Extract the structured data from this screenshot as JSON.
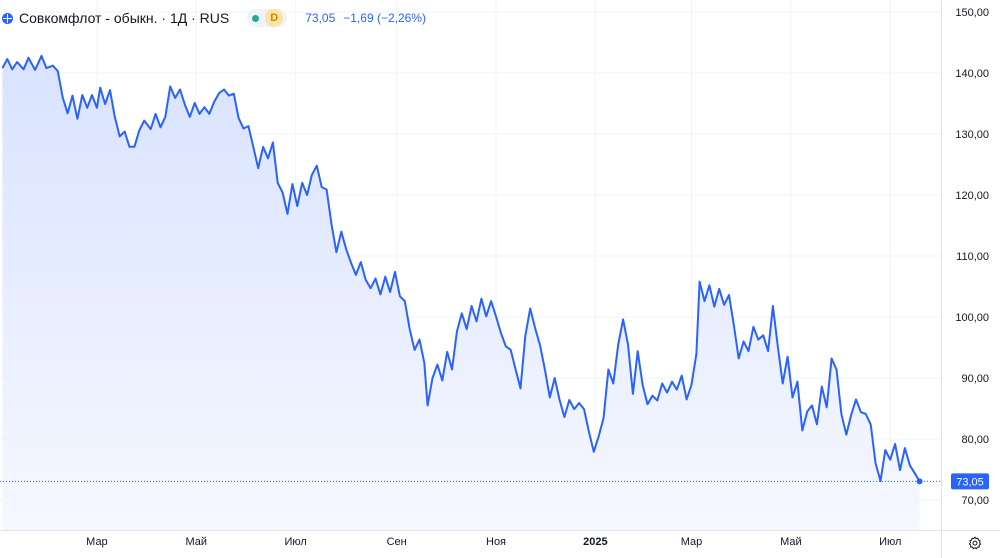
{
  "legend": {
    "icon": "symbol-globe-icon",
    "title": "Совкомфлот - обыкн. · 1Д · RUS",
    "status_badge": "D",
    "price": "73,05",
    "change": "−1,69 (−2,26%)"
  },
  "last_price_label": "73,05",
  "colors": {
    "line": "#2962ff",
    "area_top": "#d9e3ff",
    "area_bottom": "#f6f8ff",
    "grid": "#f0f3fa",
    "axis_text": "#131722",
    "last_dot_line": "#2962ff"
  },
  "settings_icon": "gear-icon",
  "chart_data": {
    "type": "area",
    "title": "Совкомфлот - обыкн. · 1Д · RUS",
    "xlabel": "",
    "ylabel": "",
    "ylim": [
      66.5,
      151
    ],
    "y_ticks": [
      70,
      80,
      90,
      100,
      110,
      120,
      130,
      140,
      150
    ],
    "y_tick_labels": [
      "70,00",
      "80,00",
      "90,00",
      "100,00",
      "110,00",
      "120,00",
      "130,00",
      "140,00",
      "150,00"
    ],
    "x_ticks": [
      {
        "x": "2024-03-01",
        "label": "Мар",
        "bold": false
      },
      {
        "x": "2024-05-01",
        "label": "Май",
        "bold": false
      },
      {
        "x": "2024-07-01",
        "label": "Июл",
        "bold": false
      },
      {
        "x": "2024-09-01",
        "label": "Сен",
        "bold": false
      },
      {
        "x": "2024-11-01",
        "label": "Ноя",
        "bold": false
      },
      {
        "x": "2025-01-01",
        "label": "2025",
        "bold": true
      },
      {
        "x": "2025-03-01",
        "label": "Мар",
        "bold": false
      },
      {
        "x": "2025-05-01",
        "label": "Май",
        "bold": false
      },
      {
        "x": "2025-07-01",
        "label": "Июл",
        "bold": false
      }
    ],
    "grid": true,
    "series": [
      {
        "points": [
          [
            "2024-01-03",
            140.8
          ],
          [
            "2024-01-06",
            142.3
          ],
          [
            "2024-01-09",
            140.6
          ],
          [
            "2024-01-12",
            141.8
          ],
          [
            "2024-01-16",
            140.6
          ],
          [
            "2024-01-19",
            142.5
          ],
          [
            "2024-01-23",
            140.5
          ],
          [
            "2024-01-27",
            142.8
          ],
          [
            "2024-01-30",
            140.8
          ],
          [
            "2024-02-03",
            141.2
          ],
          [
            "2024-02-06",
            140.3
          ],
          [
            "2024-02-09",
            136.0
          ],
          [
            "2024-02-12",
            133.4
          ],
          [
            "2024-02-15",
            136.3
          ],
          [
            "2024-02-18",
            132.5
          ],
          [
            "2024-02-21",
            136.4
          ],
          [
            "2024-02-24",
            134.3
          ],
          [
            "2024-02-27",
            136.4
          ],
          [
            "2024-03-01",
            134.3
          ],
          [
            "2024-03-03",
            137.6
          ],
          [
            "2024-03-06",
            134.9
          ],
          [
            "2024-03-09",
            137.2
          ],
          [
            "2024-03-12",
            132.8
          ],
          [
            "2024-03-15",
            129.6
          ],
          [
            "2024-03-18",
            130.4
          ],
          [
            "2024-03-21",
            127.9
          ],
          [
            "2024-03-24",
            127.9
          ],
          [
            "2024-03-27",
            130.6
          ],
          [
            "2024-03-30",
            132.2
          ],
          [
            "2024-04-03",
            130.8
          ],
          [
            "2024-04-06",
            133.3
          ],
          [
            "2024-04-09",
            131.1
          ],
          [
            "2024-04-12",
            132.8
          ],
          [
            "2024-04-15",
            137.8
          ],
          [
            "2024-04-18",
            135.9
          ],
          [
            "2024-04-21",
            137.3
          ],
          [
            "2024-04-24",
            134.8
          ],
          [
            "2024-04-27",
            132.8
          ],
          [
            "2024-04-30",
            135.1
          ],
          [
            "2024-05-03",
            133.3
          ],
          [
            "2024-05-06",
            134.4
          ],
          [
            "2024-05-09",
            133.3
          ],
          [
            "2024-05-12",
            135.3
          ],
          [
            "2024-05-15",
            136.7
          ],
          [
            "2024-05-18",
            137.3
          ],
          [
            "2024-05-21",
            136.3
          ],
          [
            "2024-05-24",
            136.6
          ],
          [
            "2024-05-27",
            132.6
          ],
          [
            "2024-05-30",
            130.9
          ],
          [
            "2024-06-02",
            131.3
          ],
          [
            "2024-06-05",
            127.9
          ],
          [
            "2024-06-08",
            124.4
          ],
          [
            "2024-06-11",
            127.9
          ],
          [
            "2024-06-14",
            126.0
          ],
          [
            "2024-06-17",
            128.6
          ],
          [
            "2024-06-20",
            122.0
          ],
          [
            "2024-06-23",
            120.4
          ],
          [
            "2024-06-26",
            116.9
          ],
          [
            "2024-06-29",
            121.8
          ],
          [
            "2024-07-02",
            118.2
          ],
          [
            "2024-07-05",
            122.0
          ],
          [
            "2024-07-08",
            120.0
          ],
          [
            "2024-07-11",
            123.3
          ],
          [
            "2024-07-14",
            124.8
          ],
          [
            "2024-07-17",
            121.3
          ],
          [
            "2024-07-20",
            120.9
          ],
          [
            "2024-07-23",
            115.2
          ],
          [
            "2024-07-26",
            110.6
          ],
          [
            "2024-07-29",
            114.0
          ],
          [
            "2024-08-01",
            111.1
          ],
          [
            "2024-08-04",
            108.9
          ],
          [
            "2024-08-07",
            106.9
          ],
          [
            "2024-08-10",
            109.0
          ],
          [
            "2024-08-13",
            106.1
          ],
          [
            "2024-08-16",
            104.7
          ],
          [
            "2024-08-19",
            106.3
          ],
          [
            "2024-08-22",
            103.7
          ],
          [
            "2024-08-25",
            106.6
          ],
          [
            "2024-08-28",
            104.1
          ],
          [
            "2024-08-31",
            107.4
          ],
          [
            "2024-09-03",
            103.4
          ],
          [
            "2024-09-06",
            102.6
          ],
          [
            "2024-09-09",
            98.0
          ],
          [
            "2024-09-12",
            94.6
          ],
          [
            "2024-09-15",
            96.3
          ],
          [
            "2024-09-18",
            92.5
          ],
          [
            "2024-09-20",
            85.5
          ],
          [
            "2024-09-23",
            90.0
          ],
          [
            "2024-09-26",
            92.2
          ],
          [
            "2024-09-29",
            89.6
          ],
          [
            "2024-10-02",
            94.3
          ],
          [
            "2024-10-05",
            91.4
          ],
          [
            "2024-10-08",
            97.6
          ],
          [
            "2024-10-11",
            100.6
          ],
          [
            "2024-10-14",
            98.0
          ],
          [
            "2024-10-17",
            101.8
          ],
          [
            "2024-10-20",
            99.3
          ],
          [
            "2024-10-23",
            103.0
          ],
          [
            "2024-10-26",
            100.1
          ],
          [
            "2024-10-29",
            102.6
          ],
          [
            "2024-11-01",
            100.1
          ],
          [
            "2024-11-04",
            97.4
          ],
          [
            "2024-11-07",
            95.2
          ],
          [
            "2024-11-10",
            94.6
          ],
          [
            "2024-11-13",
            91.4
          ],
          [
            "2024-11-16",
            88.3
          ],
          [
            "2024-11-19",
            96.9
          ],
          [
            "2024-11-22",
            101.4
          ],
          [
            "2024-11-25",
            98.2
          ],
          [
            "2024-11-28",
            95.4
          ],
          [
            "2024-12-01",
            91.4
          ],
          [
            "2024-12-04",
            86.8
          ],
          [
            "2024-12-07",
            90.0
          ],
          [
            "2024-12-10",
            86.4
          ],
          [
            "2024-12-13",
            83.6
          ],
          [
            "2024-12-16",
            86.4
          ],
          [
            "2024-12-19",
            84.9
          ],
          [
            "2024-12-22",
            85.9
          ],
          [
            "2024-12-25",
            84.9
          ],
          [
            "2024-12-28",
            81.2
          ],
          [
            "2024-12-31",
            77.9
          ],
          [
            "2025-01-03",
            80.4
          ],
          [
            "2025-01-06",
            83.4
          ],
          [
            "2025-01-09",
            91.4
          ],
          [
            "2025-01-12",
            89.1
          ],
          [
            "2025-01-15",
            95.5
          ],
          [
            "2025-01-18",
            99.6
          ],
          [
            "2025-01-21",
            95.5
          ],
          [
            "2025-01-24",
            87.4
          ],
          [
            "2025-01-27",
            94.4
          ],
          [
            "2025-01-30",
            88.9
          ],
          [
            "2025-02-02",
            85.7
          ],
          [
            "2025-02-05",
            87.1
          ],
          [
            "2025-02-08",
            86.3
          ],
          [
            "2025-02-11",
            89.1
          ],
          [
            "2025-02-14",
            87.6
          ],
          [
            "2025-02-17",
            89.4
          ],
          [
            "2025-02-20",
            88.1
          ],
          [
            "2025-02-23",
            90.4
          ],
          [
            "2025-02-26",
            86.5
          ],
          [
            "2025-03-01",
            88.9
          ],
          [
            "2025-03-04",
            94.0
          ],
          [
            "2025-03-06",
            105.8
          ],
          [
            "2025-03-09",
            102.6
          ],
          [
            "2025-03-12",
            105.2
          ],
          [
            "2025-03-15",
            101.7
          ],
          [
            "2025-03-18",
            104.6
          ],
          [
            "2025-03-21",
            102.0
          ],
          [
            "2025-03-24",
            103.6
          ],
          [
            "2025-03-27",
            98.6
          ],
          [
            "2025-03-30",
            93.2
          ],
          [
            "2025-04-02",
            96.0
          ],
          [
            "2025-04-05",
            94.4
          ],
          [
            "2025-04-08",
            98.4
          ],
          [
            "2025-04-11",
            96.3
          ],
          [
            "2025-04-14",
            97.0
          ],
          [
            "2025-04-17",
            94.4
          ],
          [
            "2025-04-20",
            101.8
          ],
          [
            "2025-04-23",
            95.2
          ],
          [
            "2025-04-26",
            89.1
          ],
          [
            "2025-04-29",
            93.5
          ],
          [
            "2025-05-02",
            86.8
          ],
          [
            "2025-05-05",
            89.4
          ],
          [
            "2025-05-08",
            81.4
          ],
          [
            "2025-05-11",
            84.5
          ],
          [
            "2025-05-14",
            85.5
          ],
          [
            "2025-05-17",
            82.4
          ],
          [
            "2025-05-20",
            88.6
          ],
          [
            "2025-05-23",
            85.2
          ],
          [
            "2025-05-26",
            93.2
          ],
          [
            "2025-05-29",
            91.4
          ],
          [
            "2025-06-01",
            84.1
          ],
          [
            "2025-06-04",
            80.7
          ],
          [
            "2025-06-07",
            83.9
          ],
          [
            "2025-06-10",
            86.5
          ],
          [
            "2025-06-13",
            84.4
          ],
          [
            "2025-06-16",
            84.1
          ],
          [
            "2025-06-19",
            82.4
          ],
          [
            "2025-06-22",
            76.0
          ],
          [
            "2025-06-25",
            73.1
          ],
          [
            "2025-06-28",
            78.2
          ],
          [
            "2025-07-01",
            76.6
          ],
          [
            "2025-07-04",
            79.2
          ],
          [
            "2025-07-07",
            74.9
          ],
          [
            "2025-07-10",
            78.5
          ],
          [
            "2025-07-13",
            75.7
          ],
          [
            "2025-07-16",
            74.4
          ],
          [
            "2025-07-19",
            73.05
          ]
        ]
      }
    ],
    "last_value": 73.05
  }
}
